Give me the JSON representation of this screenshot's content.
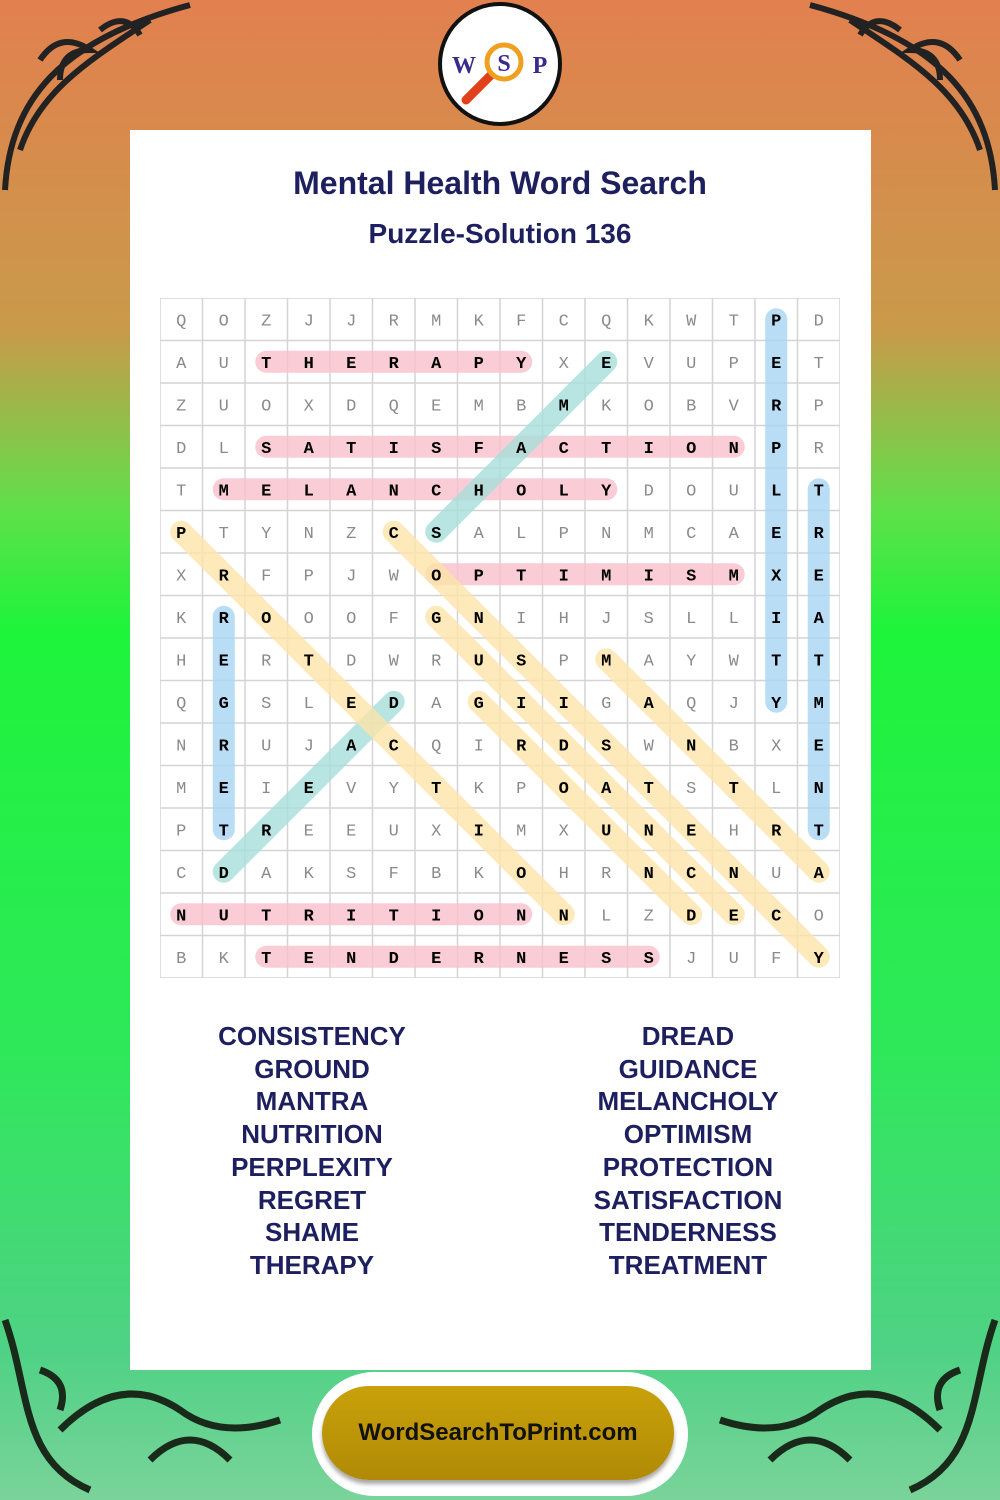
{
  "header": {
    "title": "Mental Health Word Search",
    "subtitle": "Puzzle-Solution 136"
  },
  "logo": {
    "letters": [
      "W",
      "S",
      "P"
    ]
  },
  "grid": [
    "QOZJJRMKFCQKWTPD",
    "AUTHERAPYXEVUPET",
    "ZUOXDQEMBMKOBVRP",
    "DLSATISFACTIONPR",
    "TMELANCHOLYDOULT",
    "PTYNZCSALPNMCAER",
    "XRFPJWOPTIMISMXE",
    "KROOOFGNIHJSLLIA",
    "HERTDWRUSPMAYWTT",
    "QGSLEDAGIIGAQJYM",
    "NRUJACQIRDSWNBXE",
    "MEIEVYTKPOATSTLN",
    "PTREEUXIMXUNEHRT",
    "CDAKSFBKOHRNCNUA",
    "NUTRITIONNLZDECO",
    "BKTENDERNESSJUFY"
  ],
  "colors": {
    "pink": "#f9bfcb",
    "blue": "#a8d5f3",
    "teal": "#a6dfd9",
    "yellow": "#fde3a8",
    "title": "#1d1f5e"
  },
  "solutions": [
    {
      "word": "THERAPY",
      "from": [
        1,
        2
      ],
      "to": [
        1,
        8
      ],
      "color": "pink"
    },
    {
      "word": "SATISFACTION",
      "from": [
        3,
        2
      ],
      "to": [
        3,
        13
      ],
      "color": "pink"
    },
    {
      "word": "MELANCHOLY",
      "from": [
        4,
        1
      ],
      "to": [
        4,
        10
      ],
      "color": "pink"
    },
    {
      "word": "OPTIMISM",
      "from": [
        6,
        6
      ],
      "to": [
        6,
        13
      ],
      "color": "pink"
    },
    {
      "word": "NUTRITION",
      "from": [
        14,
        0
      ],
      "to": [
        14,
        8
      ],
      "color": "pink"
    },
    {
      "word": "TENDERNESS",
      "from": [
        15,
        2
      ],
      "to": [
        15,
        11
      ],
      "color": "pink"
    },
    {
      "word": "PERPLEXITY",
      "from": [
        0,
        14
      ],
      "to": [
        9,
        14
      ],
      "color": "blue"
    },
    {
      "word": "TREATMENT",
      "from": [
        4,
        15
      ],
      "to": [
        12,
        15
      ],
      "color": "blue"
    },
    {
      "word": "REGRET",
      "from": [
        7,
        1
      ],
      "to": [
        12,
        1
      ],
      "color": "blue"
    },
    {
      "word": "SHAME",
      "from": [
        5,
        6
      ],
      "to": [
        1,
        10
      ],
      "color": "teal"
    },
    {
      "word": "DREAD",
      "from": [
        13,
        1
      ],
      "to": [
        9,
        5
      ],
      "color": "teal"
    },
    {
      "word": "PROTECTION",
      "from": [
        5,
        0
      ],
      "to": [
        14,
        9
      ],
      "color": "yellow"
    },
    {
      "word": "CONSISTENCY",
      "from": [
        5,
        5
      ],
      "to": [
        15,
        15
      ],
      "color": "yellow"
    },
    {
      "word": "GUIDANCE",
      "from": [
        7,
        6
      ],
      "to": [
        14,
        13
      ],
      "color": "yellow"
    },
    {
      "word": "GROUND",
      "from": [
        9,
        7
      ],
      "to": [
        14,
        12
      ],
      "color": "yellow"
    },
    {
      "word": "MANTRA",
      "from": [
        8,
        10
      ],
      "to": [
        13,
        15
      ],
      "color": "yellow"
    }
  ],
  "word_list": {
    "left": [
      "CONSISTENCY",
      "GROUND",
      "MANTRA",
      "NUTRITION",
      "PERPLEXITY",
      "REGRET",
      "SHAME",
      "THERAPY"
    ],
    "right": [
      "DREAD",
      "GUIDANCE",
      "MELANCHOLY",
      "OPTIMISM",
      "PROTECTION",
      "SATISFACTION",
      "TENDERNESS",
      "TREATMENT"
    ]
  },
  "footer": {
    "site": "WordSearchToPrint.com"
  }
}
